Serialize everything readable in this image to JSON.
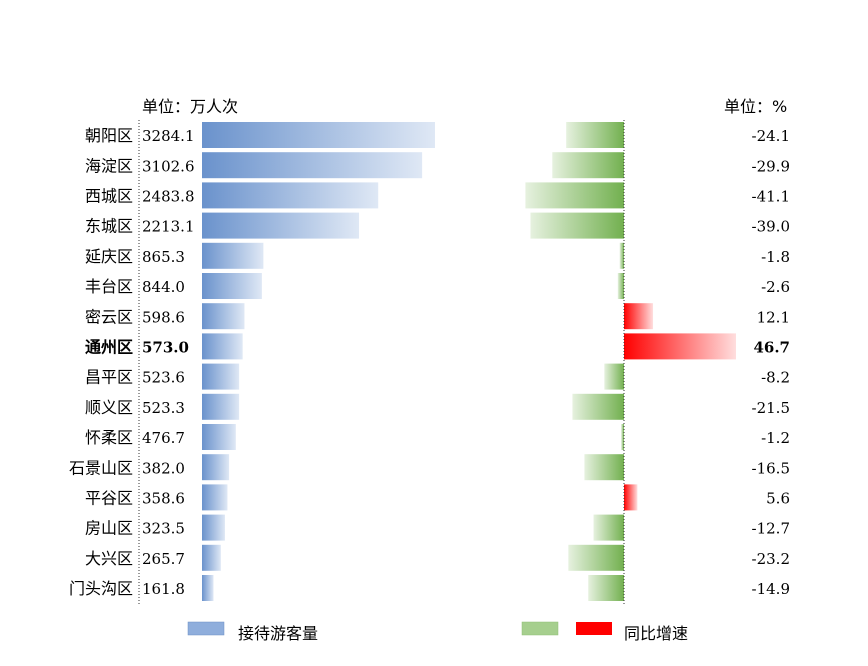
{
  "chart_data": {
    "type": "bar",
    "categories": [
      "朝阳区",
      "海淀区",
      "西城区",
      "东城区",
      "延庆区",
      "丰台区",
      "密云区",
      "通州区",
      "昌平区",
      "顺义区",
      "怀柔区",
      "石景山区",
      "平谷区",
      "房山区",
      "大兴区",
      "门头沟区"
    ],
    "highlight_category": "通州区",
    "series": [
      {
        "name": "接待游客量",
        "unit_label": "单位：万人次",
        "values": [
          3284.1,
          3102.6,
          2483.8,
          2213.1,
          865.3,
          844.0,
          598.6,
          573.0,
          523.6,
          523.3,
          476.7,
          382.0,
          358.6,
          323.5,
          265.7,
          161.8
        ],
        "value_labels": [
          "3284.1",
          "3102.6",
          "2483.8",
          "2213.1",
          "865.3",
          "844.0",
          "598.6",
          "573.0",
          "523.6",
          "523.3",
          "476.7",
          "382.0",
          "358.6",
          "323.5",
          "265.7",
          "161.8"
        ],
        "color": "#5b86c6"
      },
      {
        "name": "同比增速",
        "unit_label": "单位：%",
        "values": [
          -24.1,
          -29.9,
          -41.1,
          -39.0,
          -1.8,
          -2.6,
          12.1,
          46.7,
          -8.2,
          -21.5,
          -1.2,
          -16.5,
          5.6,
          -12.7,
          -23.2,
          -14.9
        ],
        "value_labels": [
          "-24.1",
          "-29.9",
          "-41.1",
          "-39.0",
          "-1.8",
          "-2.6",
          "12.1",
          "46.7",
          "-8.2",
          "-21.5",
          "-1.2",
          "-16.5",
          "5.6",
          "-12.7",
          "-23.2",
          "-14.9"
        ],
        "negative_color": "#7ab55c",
        "positive_color": "#ff0000"
      }
    ],
    "legend": [
      "接待游客量",
      "同比增速"
    ],
    "legend_placement": "bottom"
  }
}
